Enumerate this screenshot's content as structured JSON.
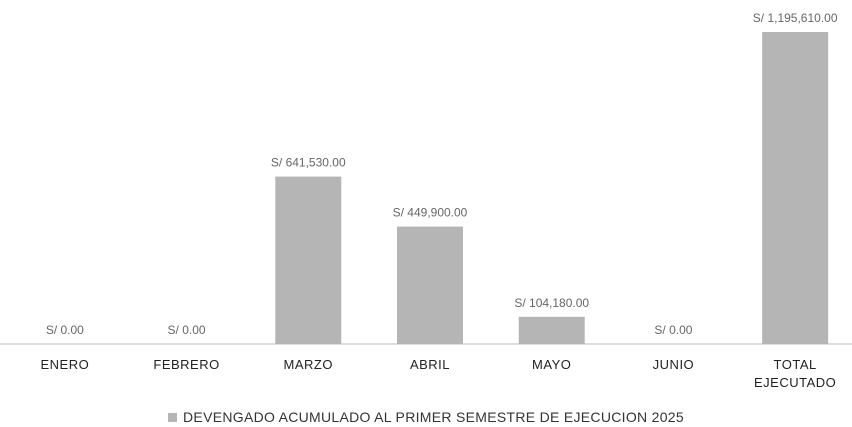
{
  "chart_data": {
    "type": "bar",
    "categories": [
      "ENERO",
      "FEBRERO",
      "MARZO",
      "ABRIL",
      "MAYO",
      "JUNIO",
      "TOTAL EJECUTADO"
    ],
    "series": [
      {
        "name": "DEVENGADO ACUMULADO AL PRIMER SEMESTRE DE EJECUCION 2025",
        "color": "#b5b5b5",
        "values": [
          0,
          0,
          641530,
          449900,
          104180,
          0,
          1195610
        ],
        "value_labels": [
          "S/ 0.00",
          "S/ 0.00",
          "S/ 641,530.00",
          "S/ 449,900.00",
          "S/ 104,180.00",
          "S/ 0.00",
          "S/ 1,195,610.00"
        ]
      }
    ],
    "legend": "bottom"
  }
}
